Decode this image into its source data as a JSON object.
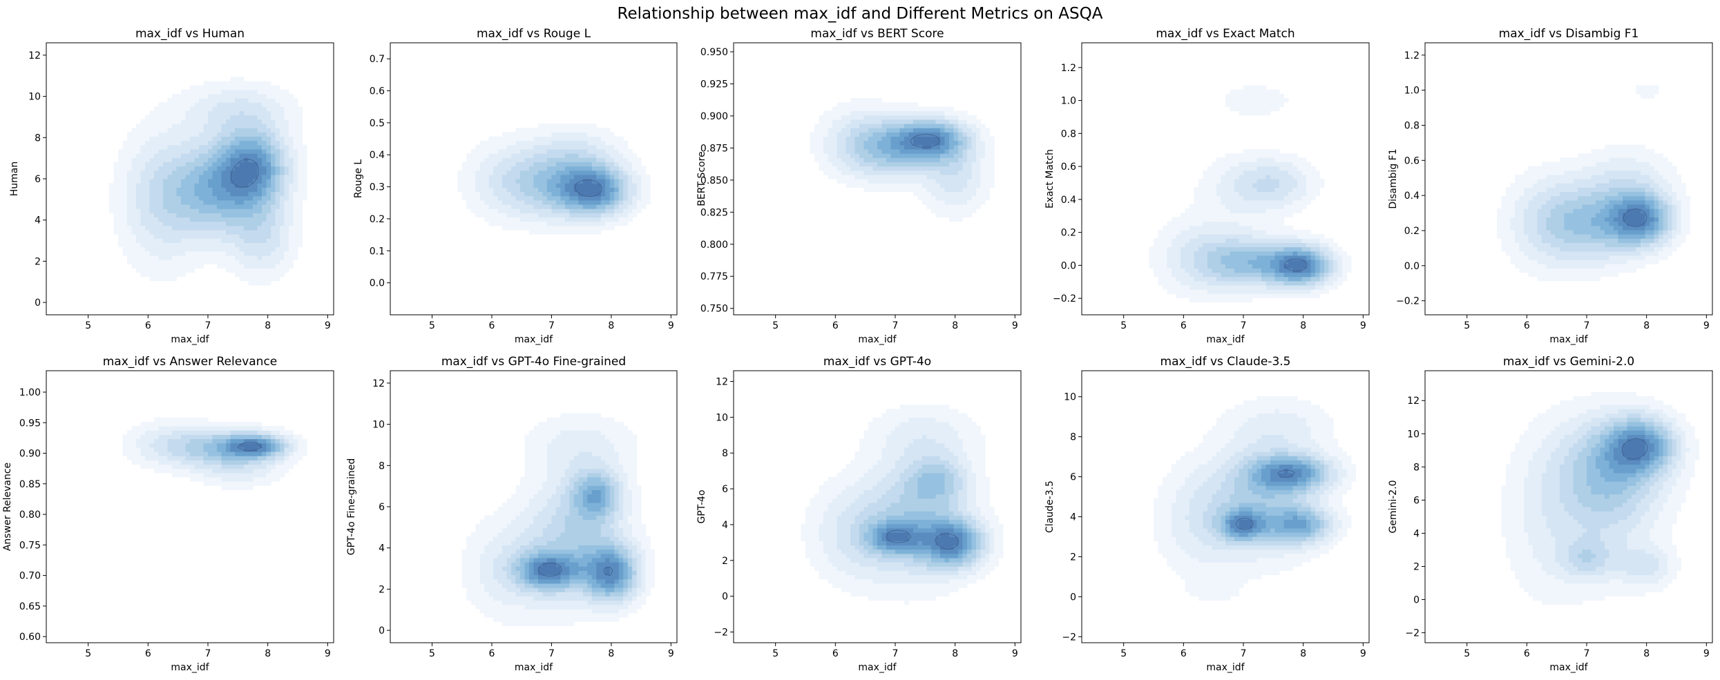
{
  "figure": {
    "title": "Relationship between max_idf and Different Metrics on ASQA"
  },
  "chart_data": [
    {
      "type": "kde-contour",
      "title": "max_idf vs Human",
      "xlabel": "max_idf",
      "ylabel": "Human",
      "xlim": [
        4.3,
        9.1
      ],
      "ylim": [
        -0.6,
        12.6
      ],
      "xticks": [
        5,
        6,
        7,
        8,
        9
      ],
      "yticks": [
        0,
        2,
        4,
        6,
        8,
        10,
        12
      ],
      "density_components": [
        {
          "x": 7.75,
          "y": 6.6,
          "sx": 0.38,
          "sy": 1.2,
          "w": 1.0
        },
        {
          "x": 7.15,
          "y": 5.5,
          "sx": 0.55,
          "sy": 1.5,
          "w": 0.8
        },
        {
          "x": 6.2,
          "y": 5.0,
          "sx": 0.45,
          "sy": 2.2,
          "w": 0.35
        },
        {
          "x": 7.9,
          "y": 3.2,
          "sx": 0.35,
          "sy": 1.3,
          "w": 0.35
        },
        {
          "x": 7.5,
          "y": 9.3,
          "sx": 0.6,
          "sy": 0.9,
          "w": 0.3
        }
      ]
    },
    {
      "type": "kde-contour",
      "title": "max_idf vs Rouge L",
      "xlabel": "max_idf",
      "ylabel": "Rouge L",
      "xlim": [
        4.3,
        9.1
      ],
      "ylim": [
        -0.1,
        0.75
      ],
      "xticks": [
        5,
        6,
        7,
        8,
        9
      ],
      "yticks": [
        0.0,
        0.1,
        0.2,
        0.3,
        0.4,
        0.5,
        0.6,
        0.7
      ],
      "density_components": [
        {
          "x": 7.75,
          "y": 0.29,
          "sx": 0.38,
          "sy": 0.05,
          "w": 1.0
        },
        {
          "x": 7.2,
          "y": 0.31,
          "sx": 0.55,
          "sy": 0.07,
          "w": 0.7
        },
        {
          "x": 6.3,
          "y": 0.32,
          "sx": 0.5,
          "sy": 0.08,
          "w": 0.3
        },
        {
          "x": 7.4,
          "y": 0.42,
          "sx": 0.5,
          "sy": 0.05,
          "w": 0.2
        }
      ]
    },
    {
      "type": "kde-contour",
      "title": "max_idf vs BERT Score",
      "xlabel": "max_idf",
      "ylabel": "BERT Score",
      "xlim": [
        4.3,
        9.1
      ],
      "ylim": [
        0.745,
        0.957
      ],
      "xticks": [
        5,
        6,
        7,
        8,
        9
      ],
      "yticks": [
        0.75,
        0.775,
        0.8,
        0.825,
        0.85,
        0.875,
        0.9,
        0.925,
        0.95
      ],
      "density_components": [
        {
          "x": 7.6,
          "y": 0.882,
          "sx": 0.4,
          "sy": 0.01,
          "w": 1.0
        },
        {
          "x": 7.0,
          "y": 0.875,
          "sx": 0.5,
          "sy": 0.015,
          "w": 0.6
        },
        {
          "x": 6.4,
          "y": 0.88,
          "sx": 0.45,
          "sy": 0.018,
          "w": 0.3
        },
        {
          "x": 8.0,
          "y": 0.855,
          "sx": 0.35,
          "sy": 0.02,
          "w": 0.35
        }
      ]
    },
    {
      "type": "kde-contour",
      "title": "max_idf vs Exact Match",
      "xlabel": "max_idf",
      "ylabel": "Exact Match",
      "xlim": [
        4.3,
        9.1
      ],
      "ylim": [
        -0.3,
        1.35
      ],
      "xticks": [
        5,
        6,
        7,
        8,
        9
      ],
      "yticks": [
        -0.2,
        0.0,
        0.2,
        0.4,
        0.6,
        0.8,
        1.0,
        1.2
      ],
      "density_components": [
        {
          "x": 7.95,
          "y": 0.0,
          "sx": 0.35,
          "sy": 0.08,
          "w": 1.0
        },
        {
          "x": 7.1,
          "y": 0.02,
          "sx": 0.5,
          "sy": 0.1,
          "w": 0.55
        },
        {
          "x": 6.3,
          "y": 0.05,
          "sx": 0.5,
          "sy": 0.15,
          "w": 0.25
        },
        {
          "x": 7.5,
          "y": 0.5,
          "sx": 0.45,
          "sy": 0.1,
          "w": 0.3
        },
        {
          "x": 6.9,
          "y": 0.45,
          "sx": 0.5,
          "sy": 0.15,
          "w": 0.12
        },
        {
          "x": 7.2,
          "y": 1.0,
          "sx": 0.5,
          "sy": 0.08,
          "w": 0.1
        }
      ]
    },
    {
      "type": "kde-contour",
      "title": "max_idf vs Disambig F1",
      "xlabel": "max_idf",
      "ylabel": "Disambig F1",
      "xlim": [
        4.3,
        9.1
      ],
      "ylim": [
        -0.28,
        1.27
      ],
      "xticks": [
        5,
        6,
        7,
        8,
        9
      ],
      "yticks": [
        -0.2,
        0.0,
        0.2,
        0.4,
        0.6,
        0.8,
        1.0,
        1.2
      ],
      "density_components": [
        {
          "x": 7.9,
          "y": 0.27,
          "sx": 0.35,
          "sy": 0.1,
          "w": 1.0
        },
        {
          "x": 7.1,
          "y": 0.25,
          "sx": 0.55,
          "sy": 0.15,
          "w": 0.6
        },
        {
          "x": 6.3,
          "y": 0.25,
          "sx": 0.45,
          "sy": 0.18,
          "w": 0.25
        },
        {
          "x": 7.7,
          "y": 0.5,
          "sx": 0.5,
          "sy": 0.12,
          "w": 0.2
        },
        {
          "x": 8.0,
          "y": 1.0,
          "sx": 0.3,
          "sy": 0.06,
          "w": 0.08
        }
      ]
    },
    {
      "type": "kde-contour",
      "title": "max_idf vs Answer Relevance",
      "xlabel": "max_idf",
      "ylabel": "Answer Relevance",
      "xlim": [
        4.3,
        9.1
      ],
      "ylim": [
        0.59,
        1.035
      ],
      "xticks": [
        5,
        6,
        7,
        8,
        9
      ],
      "yticks": [
        0.6,
        0.65,
        0.7,
        0.75,
        0.8,
        0.85,
        0.9,
        0.95,
        1.0
      ],
      "density_components": [
        {
          "x": 7.8,
          "y": 0.912,
          "sx": 0.35,
          "sy": 0.013,
          "w": 1.0
        },
        {
          "x": 7.2,
          "y": 0.91,
          "sx": 0.55,
          "sy": 0.02,
          "w": 0.6
        },
        {
          "x": 6.3,
          "y": 0.915,
          "sx": 0.45,
          "sy": 0.025,
          "w": 0.25
        },
        {
          "x": 7.5,
          "y": 0.875,
          "sx": 0.5,
          "sy": 0.02,
          "w": 0.25
        }
      ]
    },
    {
      "type": "kde-contour",
      "title": "max_idf vs GPT-4o Fine-grained",
      "xlabel": "max_idf",
      "ylabel": "GPT-4o Fine-grained",
      "xlim": [
        4.3,
        9.1
      ],
      "ylim": [
        -0.6,
        12.6
      ],
      "xticks": [
        5,
        6,
        7,
        8,
        9
      ],
      "yticks": [
        0,
        2,
        4,
        6,
        8,
        10,
        12
      ],
      "density_components": [
        {
          "x": 8.0,
          "y": 2.8,
          "sx": 0.3,
          "sy": 0.9,
          "w": 1.0
        },
        {
          "x": 6.95,
          "y": 2.9,
          "sx": 0.35,
          "sy": 0.6,
          "w": 0.95
        },
        {
          "x": 7.75,
          "y": 6.6,
          "sx": 0.28,
          "sy": 0.8,
          "w": 0.7
        },
        {
          "x": 7.4,
          "y": 4.5,
          "sx": 0.55,
          "sy": 2.0,
          "w": 0.5
        },
        {
          "x": 6.3,
          "y": 3.0,
          "sx": 0.5,
          "sy": 1.6,
          "w": 0.25
        },
        {
          "x": 7.5,
          "y": 9.0,
          "sx": 0.6,
          "sy": 1.0,
          "w": 0.2
        }
      ]
    },
    {
      "type": "kde-contour",
      "title": "max_idf vs GPT-4o",
      "xlabel": "max_idf",
      "ylabel": "GPT-4o",
      "xlim": [
        4.3,
        9.1
      ],
      "ylim": [
        -2.6,
        12.6
      ],
      "xticks": [
        5,
        6,
        7,
        8,
        9
      ],
      "yticks": [
        -2,
        0,
        2,
        4,
        6,
        8,
        10,
        12
      ],
      "density_components": [
        {
          "x": 7.95,
          "y": 3.0,
          "sx": 0.35,
          "sy": 0.9,
          "w": 1.0
        },
        {
          "x": 7.0,
          "y": 3.3,
          "sx": 0.3,
          "sy": 0.6,
          "w": 0.75
        },
        {
          "x": 7.7,
          "y": 6.5,
          "sx": 0.35,
          "sy": 0.9,
          "w": 0.45
        },
        {
          "x": 7.3,
          "y": 4.2,
          "sx": 0.6,
          "sy": 2.2,
          "w": 0.5
        },
        {
          "x": 6.3,
          "y": 3.5,
          "sx": 0.5,
          "sy": 1.8,
          "w": 0.25
        },
        {
          "x": 7.5,
          "y": 9.0,
          "sx": 0.6,
          "sy": 1.1,
          "w": 0.2
        }
      ]
    },
    {
      "type": "kde-contour",
      "title": "max_idf vs Claude-3.5",
      "xlabel": "max_idf",
      "ylabel": "Claude-3.5",
      "xlim": [
        4.3,
        9.1
      ],
      "ylim": [
        -2.3,
        11.3
      ],
      "xticks": [
        5,
        6,
        7,
        8,
        9
      ],
      "yticks": [
        -2,
        0,
        2,
        4,
        6,
        8,
        10
      ],
      "density_components": [
        {
          "x": 7.8,
          "y": 6.2,
          "sx": 0.45,
          "sy": 0.6,
          "w": 1.0
        },
        {
          "x": 7.0,
          "y": 3.6,
          "sx": 0.25,
          "sy": 0.5,
          "w": 0.9
        },
        {
          "x": 7.95,
          "y": 3.6,
          "sx": 0.35,
          "sy": 0.6,
          "w": 0.8
        },
        {
          "x": 7.3,
          "y": 4.8,
          "sx": 0.6,
          "sy": 1.8,
          "w": 0.55
        },
        {
          "x": 6.3,
          "y": 3.8,
          "sx": 0.5,
          "sy": 1.8,
          "w": 0.25
        },
        {
          "x": 6.5,
          "y": 0.3,
          "sx": 0.3,
          "sy": 0.4,
          "w": 0.1
        },
        {
          "x": 7.6,
          "y": 8.5,
          "sx": 0.6,
          "sy": 1.0,
          "w": 0.2
        }
      ]
    },
    {
      "type": "kde-contour",
      "title": "max_idf vs Gemini-2.0",
      "xlabel": "max_idf",
      "ylabel": "Gemini-2.0",
      "xlim": [
        4.3,
        9.1
      ],
      "ylim": [
        -2.6,
        13.8
      ],
      "xticks": [
        5,
        6,
        7,
        8,
        9
      ],
      "yticks": [
        -2,
        0,
        2,
        4,
        6,
        8,
        10,
        12
      ],
      "density_components": [
        {
          "x": 7.9,
          "y": 9.3,
          "sx": 0.38,
          "sy": 1.1,
          "w": 1.0
        },
        {
          "x": 7.4,
          "y": 8.0,
          "sx": 0.6,
          "sy": 2.0,
          "w": 0.55
        },
        {
          "x": 7.0,
          "y": 2.5,
          "sx": 0.3,
          "sy": 0.8,
          "w": 0.35
        },
        {
          "x": 8.0,
          "y": 2.0,
          "sx": 0.3,
          "sy": 0.8,
          "w": 0.3
        },
        {
          "x": 7.3,
          "y": 5.5,
          "sx": 0.6,
          "sy": 3.0,
          "w": 0.3
        },
        {
          "x": 6.3,
          "y": 5.0,
          "sx": 0.5,
          "sy": 3.5,
          "w": 0.18
        }
      ]
    }
  ],
  "colors": {
    "levels": [
      "#f1f6fc",
      "#e3eef8",
      "#d5e5f3",
      "#c4daee",
      "#aecfe6",
      "#96c1e0",
      "#7eb1d7",
      "#689fcc",
      "#5a8cc0",
      "#4d79b1"
    ],
    "contour_line": "#3d5f8a",
    "axis": "#000000"
  }
}
